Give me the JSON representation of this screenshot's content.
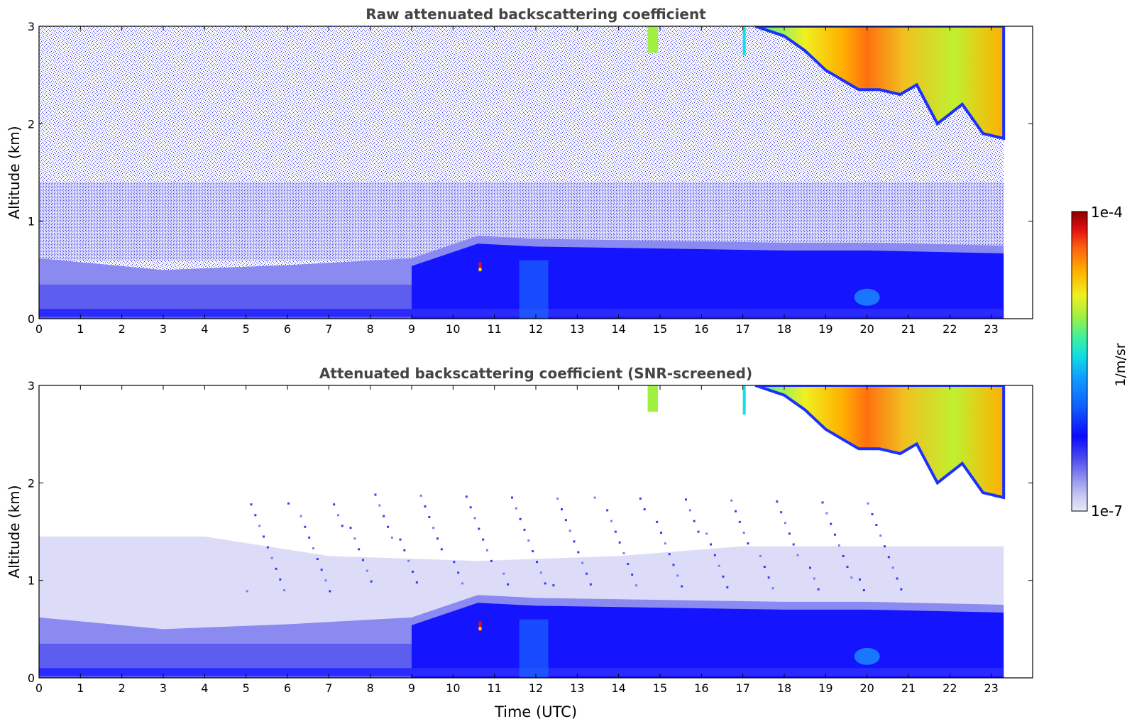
{
  "chart_data": [
    {
      "type": "heatmap",
      "title": "Raw attenuated backscattering coefficient",
      "xlabel": "",
      "ylabel": "Altitude (km)",
      "xlim": [
        0,
        24
      ],
      "ylim": [
        0,
        3
      ],
      "xticks": [
        "0",
        "1",
        "2",
        "3",
        "4",
        "5",
        "6",
        "7",
        "8",
        "9",
        "10",
        "11",
        "12",
        "13",
        "14",
        "15",
        "16",
        "17",
        "18",
        "19",
        "20",
        "21",
        "22",
        "23"
      ],
      "yticks": [
        "0",
        "1",
        "2",
        "3"
      ],
      "data_end_time": 23.3,
      "features": {
        "boundary_layer_top_km": [
          [
            0,
            0.62
          ],
          [
            3,
            0.5
          ],
          [
            6,
            0.55
          ],
          [
            9,
            0.62
          ],
          [
            10.6,
            0.85
          ],
          [
            12,
            0.82
          ],
          [
            15,
            0.8
          ],
          [
            18,
            0.78
          ],
          [
            20,
            0.78
          ],
          [
            23.3,
            0.75
          ]
        ],
        "cloud_base_km": [
          [
            17.3,
            3.0
          ],
          [
            18,
            2.9
          ],
          [
            18.5,
            2.75
          ],
          [
            19,
            2.55
          ],
          [
            19.8,
            2.35
          ],
          [
            20.3,
            2.35
          ],
          [
            20.8,
            2.3
          ],
          [
            21.2,
            2.4
          ],
          [
            21.7,
            2.0
          ],
          [
            22.3,
            2.2
          ],
          [
            22.8,
            1.9
          ],
          [
            23.3,
            1.85
          ]
        ],
        "noise_level": "high"
      }
    },
    {
      "type": "heatmap",
      "title": "Attenuated backscattering coefficient (SNR-screened)",
      "xlabel": "Time (UTC)",
      "ylabel": "Altitude (km)",
      "xlim": [
        0,
        24
      ],
      "ylim": [
        0,
        3
      ],
      "xticks": [
        "0",
        "1",
        "2",
        "3",
        "4",
        "5",
        "6",
        "7",
        "8",
        "9",
        "10",
        "11",
        "12",
        "13",
        "14",
        "15",
        "16",
        "17",
        "18",
        "19",
        "20",
        "21",
        "22",
        "23"
      ],
      "yticks": [
        "0",
        "1",
        "2",
        "3"
      ],
      "data_end_time": 23.3,
      "features": {
        "boundary_layer_top_km": [
          [
            0,
            0.62
          ],
          [
            3,
            0.5
          ],
          [
            6,
            0.55
          ],
          [
            9,
            0.62
          ],
          [
            10.6,
            0.85
          ],
          [
            12,
            0.82
          ],
          [
            15,
            0.8
          ],
          [
            18,
            0.78
          ],
          [
            20,
            0.78
          ],
          [
            23.3,
            0.75
          ]
        ],
        "cloud_base_km": [
          [
            17.3,
            3.0
          ],
          [
            18,
            2.9
          ],
          [
            18.5,
            2.75
          ],
          [
            19,
            2.55
          ],
          [
            19.8,
            2.35
          ],
          [
            20.3,
            2.35
          ],
          [
            20.8,
            2.3
          ],
          [
            21.2,
            2.4
          ],
          [
            21.7,
            2.0
          ],
          [
            22.3,
            2.2
          ],
          [
            22.8,
            1.9
          ],
          [
            23.3,
            1.85
          ]
        ],
        "aerosol_layer_top_km": [
          [
            0,
            1.45
          ],
          [
            4,
            1.45
          ],
          [
            7,
            1.25
          ],
          [
            10.6,
            1.2
          ],
          [
            14,
            1.25
          ],
          [
            17,
            1.35
          ],
          [
            20,
            1.35
          ],
          [
            23.3,
            1.35
          ]
        ],
        "noise_level": "screened"
      }
    }
  ],
  "colorbar": {
    "label": "1/m/sr",
    "max_label": "1e-4",
    "min_label": "1e-7",
    "scale": "log",
    "colormap": [
      "#e8e8fa",
      "#c8c8f4",
      "#9a9af0",
      "#5050f0",
      "#0a0aff",
      "#1060ff",
      "#10a0ff",
      "#10e0e0",
      "#40f0a0",
      "#a0f040",
      "#f0f020",
      "#ffb000",
      "#ff6010",
      "#e01010",
      "#8c0000"
    ]
  }
}
